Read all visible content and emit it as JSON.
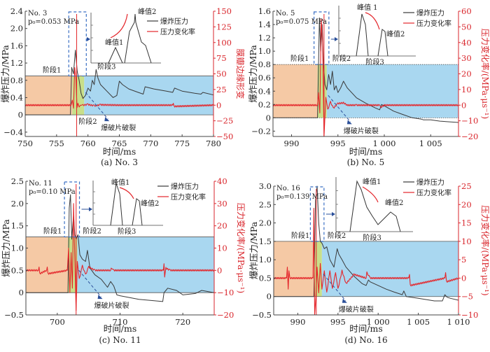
{
  "chart_data": [
    {
      "type": "line",
      "id": "a",
      "caption": "(a) No. 3",
      "sample_label": "No. 3",
      "pressure_label": "p₀=0.053 MPa",
      "xlabel": "时间/ms",
      "ylabel": "爆炸压力/MPa",
      "y2label": "膜瓣边缘形变",
      "xlim": [
        750,
        780
      ],
      "ylim": [
        -0.5,
        2.4
      ],
      "y2lim": [
        -50,
        150
      ],
      "xticks": [
        750,
        755,
        760,
        765,
        770,
        775,
        780
      ],
      "xtick_labels": [
        "750",
        "755",
        "760",
        "765",
        "770",
        "775",
        "780"
      ],
      "yticks": [
        -0.4,
        0,
        0.4,
        0.8,
        1.2,
        1.6,
        2.0,
        2.4
      ],
      "ytick_labels": [
        "−0.4",
        "0",
        "0.4",
        "0.8",
        "1.2",
        "1.6",
        "2.0",
        "2.4"
      ],
      "y2ticks": [
        -50,
        -25,
        0,
        25,
        50,
        75,
        100,
        125,
        150
      ],
      "y2tick_labels": [
        "−50",
        "−25",
        "0",
        "25",
        "50",
        "75",
        "100",
        "125",
        "150"
      ],
      "stages": [
        {
          "name": "阶段1",
          "from": 750,
          "to": 757.5,
          "color": "#f5c9a5"
        },
        {
          "name": "阶段2",
          "from": 757.5,
          "to": 759.4,
          "color": "#c8df8a"
        },
        {
          "name": "阶段3",
          "from": 759.4,
          "to": 780,
          "color": "#a9d7f0"
        }
      ],
      "stage_top": 0.9,
      "rupture_time": 758.2,
      "annotations": {
        "stage1": "阶段1",
        "stage2": "阶段2",
        "stage3": "阶段3",
        "rupture": "爆破片破裂"
      },
      "legend": [
        "爆炸压力",
        "压力变化率"
      ],
      "inset": {
        "peak1": "峰值1",
        "peak2": "峰值2",
        "trend": "up"
      },
      "series": [
        {
          "name": "爆炸压力",
          "color": "#3a3a3a",
          "axis": "left",
          "x": [
            750,
            757.2,
            757.4,
            757.7,
            758.0,
            758.3,
            758.6,
            758.9,
            759.2,
            759.6,
            760.0,
            760.4,
            760.7,
            761.0,
            761.3,
            761.6,
            762.0,
            763.0,
            764.0,
            764.6,
            765.0,
            765.5,
            766.5,
            768.0,
            768.8,
            769.1,
            770.5,
            772.5,
            773.5,
            773.8,
            775.0,
            777.0,
            778.0,
            778.3,
            780
          ],
          "y": [
            0.0,
            0.0,
            1.1,
            0.95,
            1.5,
            1.0,
            0.8,
            0.5,
            0.38,
            0.45,
            0.62,
            0.55,
            0.8,
            0.7,
            1.05,
            0.85,
            0.7,
            0.55,
            0.4,
            0.45,
            0.78,
            0.7,
            0.6,
            0.52,
            0.48,
            0.65,
            0.6,
            0.55,
            0.52,
            0.62,
            0.55,
            0.5,
            0.48,
            0.52,
            0.46
          ]
        },
        {
          "name": "压力变化率",
          "color": "#e4262b",
          "axis": "right",
          "x": [
            750,
            757.3,
            757.5,
            757.7,
            757.9,
            758.1,
            758.25,
            758.4,
            758.6,
            758.8,
            759.2,
            760.0,
            761.0,
            762.0,
            765.0,
            773.5,
            773.6,
            773.7,
            780
          ],
          "y": [
            0,
            0,
            8,
            -5,
            60,
            40,
            -4,
            3,
            -3,
            0,
            0,
            1,
            -1,
            0.5,
            0,
            0,
            3,
            -2,
            0
          ]
        }
      ]
    },
    {
      "type": "line",
      "id": "b",
      "caption": "(b) No. 5",
      "sample_label": "No. 5",
      "pressure_label": "p₀=0.075 MPa",
      "xlabel": "时间/ms",
      "ylabel": "爆炸压力/MPa",
      "y2label": "压力变化率/(MPa·μs⁻¹)",
      "xlim": [
        988,
        1008
      ],
      "ylim": [
        -0.28,
        1.6
      ],
      "y2lim": [
        -20,
        60
      ],
      "xticks": [
        990,
        995,
        1000,
        1005
      ],
      "xtick_labels": [
        "990",
        "995",
        "1 000",
        "1 005"
      ],
      "yticks": [
        -0.2,
        0,
        0.2,
        0.4,
        0.6,
        0.8,
        1.0,
        1.2,
        1.4,
        1.6
      ],
      "ytick_labels": [
        "−0.2",
        "0",
        "0.2",
        "0.4",
        "0.6",
        "0.8",
        "1.0",
        "1.2",
        "1.4",
        "1.6"
      ],
      "y2ticks": [
        -20,
        -10,
        0,
        10,
        20,
        30,
        40,
        50,
        60
      ],
      "y2tick_labels": [
        "−20",
        "−10",
        "0",
        "10",
        "20",
        "30",
        "40",
        "50",
        "60"
      ],
      "stages": [
        {
          "name": "阶段1",
          "from": 988,
          "to": 992.8,
          "color": "#f5c9a5"
        },
        {
          "name": "阶段2",
          "from": 992.8,
          "to": 993.8,
          "color": "#c8df8a"
        },
        {
          "name": "阶段3",
          "from": 993.8,
          "to": 1008,
          "color": "#a9d7f0"
        }
      ],
      "stage_top": 0.8,
      "rupture_time": 993.5,
      "annotations": {
        "stage1": "阶段1",
        "stage2": "阶段2",
        "stage3": "阶段3",
        "rupture": "爆破片破裂"
      },
      "legend": [
        "爆炸压力",
        "压力变化率"
      ],
      "inset": {
        "peak1": "峰值 1",
        "peak2": "峰值2",
        "trend": "down"
      },
      "series": [
        {
          "name": "爆炸压力",
          "color": "#3a3a3a",
          "axis": "left",
          "x": [
            988,
            992.8,
            993.0,
            993.15,
            993.3,
            993.45,
            993.6,
            993.8,
            994.0,
            994.2,
            994.4,
            994.6,
            994.8,
            995.0,
            995.3,
            995.6,
            996.0,
            997.0,
            998.0,
            999.0,
            999.5,
            999.7,
            1000.0,
            1001.0,
            1002.0,
            1003.0,
            1004.0,
            1004.2,
            1005.0,
            1006.0,
            1008
          ],
          "y": [
            0,
            0,
            1.5,
            1.0,
            1.4,
            0.8,
            0.5,
            0.42,
            0.65,
            0.5,
            0.7,
            0.42,
            0.48,
            0.38,
            0.45,
            0.55,
            0.45,
            0.3,
            0.22,
            0.15,
            0.12,
            0.2,
            0.18,
            0.1,
            0.05,
            0.0,
            -0.02,
            -0.03,
            -0.03,
            -0.05,
            -0.07
          ]
        },
        {
          "name": "压力变化率",
          "color": "#e4262b",
          "axis": "right",
          "x": [
            988,
            992.8,
            992.9,
            993.05,
            993.2,
            993.35,
            993.5,
            993.7,
            993.9,
            994.2,
            994.5,
            995.0,
            995.6,
            996.0,
            997.0,
            999.5,
            999.6,
            1000,
            1008
          ],
          "y": [
            0,
            0,
            8,
            -5,
            55,
            40,
            -20,
            5,
            -3,
            2,
            -2,
            1,
            1.5,
            0,
            0,
            0,
            -1.5,
            0,
            0
          ]
        }
      ]
    },
    {
      "type": "line",
      "id": "c",
      "caption": "(c) No. 11",
      "sample_label": "No. 11",
      "pressure_label": "p₀=0.10 MPa",
      "xlabel": "时间/ms",
      "ylabel": "爆炸压力/MPa",
      "y2label": "压力变化率/(MPa·μs⁻¹)",
      "xlim": [
        695,
        725
      ],
      "ylim": [
        -0.5,
        2.5
      ],
      "y2lim": [
        -20,
        40
      ],
      "xticks": [
        700,
        710,
        720
      ],
      "xtick_labels": [
        "700",
        "710",
        "720"
      ],
      "yticks": [
        -0.5,
        0,
        0.5,
        1.0,
        1.5,
        2.0,
        2.5
      ],
      "ytick_labels": [
        "−0.5",
        "0",
        "0.5",
        "1.0",
        "1.5",
        "2.0",
        "2.5"
      ],
      "y2ticks": [
        -20,
        -10,
        0,
        10,
        20,
        30,
        40
      ],
      "y2tick_labels": [
        "−20",
        "−10",
        "0",
        "10",
        "20",
        "30",
        "40"
      ],
      "stages": [
        {
          "name": "阶段1",
          "from": 695,
          "to": 701.7,
          "color": "#f5c9a5"
        },
        {
          "name": "阶段2",
          "from": 701.7,
          "to": 703.2,
          "color": "#c8df8a"
        },
        {
          "name": "阶段3",
          "from": 703.2,
          "to": 725,
          "color": "#a9d7f0"
        }
      ],
      "stage_top": 1.25,
      "rupture_time": 703.0,
      "annotations": {
        "stage1": "阶段1",
        "stage2": "阶段2",
        "stage3": "阶段3",
        "rupture": "爆破片破裂"
      },
      "legend": [
        "爆炸压力",
        "压力变化率"
      ],
      "inset": {
        "peak1": "峰值1",
        "peak2": "峰值2",
        "trend": "down"
      },
      "series": [
        {
          "name": "爆炸压力",
          "color": "#3a3a3a",
          "axis": "left",
          "x": [
            695,
            701.7,
            701.9,
            702.1,
            702.3,
            702.6,
            702.8,
            703.0,
            703.3,
            703.6,
            704.0,
            704.5,
            704.8,
            705.2,
            706.0,
            707.0,
            708.0,
            708.5,
            709.0,
            709.5,
            710.0,
            713.0,
            716.8,
            717.0,
            717.3,
            717.6,
            719.0,
            720.0,
            722.0,
            723.0,
            725
          ],
          "y": [
            0,
            0,
            1.9,
            2.2,
            1.2,
            1.75,
            1.3,
            1.2,
            1.3,
            0.85,
            0.75,
            0.7,
            0.95,
            0.55,
            0.4,
            0.3,
            0.12,
            0.25,
            0.15,
            -0.05,
            -0.07,
            -0.15,
            -0.2,
            0.0,
            0.05,
            0.1,
            0.05,
            -0.05,
            -0.02,
            0.05,
            0.0
          ]
        },
        {
          "name": "压力变化率",
          "color": "#e4262b",
          "axis": "right",
          "x": [
            695,
            697.0,
            697.1,
            697.2,
            698.3,
            698.4,
            698.5,
            701.6,
            701.8,
            702.0,
            702.2,
            702.4,
            702.6,
            702.8,
            703.0,
            703.2,
            703.5,
            704.0,
            704.5,
            705.0,
            706.0,
            708.5,
            708.6,
            709.0,
            716.9,
            717.0,
            717.1,
            717.3,
            718,
            725
          ],
          "y": [
            0,
            0,
            1.5,
            -1.5,
            0,
            1.5,
            -1.5,
            0,
            10,
            -10,
            8,
            -8,
            30,
            5,
            -18,
            4,
            -4,
            2,
            -2,
            1.5,
            0,
            0,
            1,
            0,
            0,
            3,
            -3,
            1,
            0,
            0
          ]
        }
      ]
    },
    {
      "type": "line",
      "id": "d",
      "caption": "(d) No. 16",
      "sample_label": "No. 16",
      "pressure_label": "p₀=0.139 MPa",
      "xlabel": "时间/ms",
      "ylabel": "爆炸压力/MPa",
      "y2label": "压力变化率/(MPa·μs⁻¹)",
      "xlim": [
        987,
        1010
      ],
      "ylim": [
        -0.5,
        3.0
      ],
      "y2lim": [
        -10,
        25
      ],
      "xticks": [
        990,
        995,
        1000,
        1005,
        1010
      ],
      "xtick_labels": [
        "990",
        "995",
        "1 000",
        "1 005",
        "1 010"
      ],
      "yticks": [
        -0.5,
        0,
        0.5,
        1.0,
        1.5,
        2.0,
        2.5,
        3.0
      ],
      "ytick_labels": [
        "−0.5",
        "0",
        "0.5",
        "1.0",
        "1.5",
        "2.0",
        "2.5",
        "3.0"
      ],
      "y2ticks": [
        -10,
        -5,
        0,
        5,
        10,
        15,
        20,
        25
      ],
      "y2tick_labels": [
        "−10",
        "−5",
        "0",
        "5",
        "10",
        "15",
        "20",
        "25"
      ],
      "stages": [
        {
          "name": "阶段1",
          "from": 987,
          "to": 992.0,
          "color": "#f5c9a5"
        },
        {
          "name": "阶段2",
          "from": 992.0,
          "to": 993.0,
          "color": "#c8df8a"
        },
        {
          "name": "阶段3",
          "from": 993.0,
          "to": 1010,
          "color": "#a9d7f0"
        }
      ],
      "stage_top": 1.5,
      "rupture_time": 992.3,
      "annotations": {
        "stage1": "阶段1",
        "stage2": "阶段2",
        "stage3": "阶段3",
        "rupture": "爆破片破裂"
      },
      "legend": [
        "爆炸压力",
        "压力变化率"
      ],
      "inset": {
        "peak1": "峰值1",
        "peak2": "峰值2",
        "trend": "down"
      },
      "series": [
        {
          "name": "爆炸压力",
          "color": "#3a3a3a",
          "axis": "left",
          "x": [
            987,
            992.0,
            992.2,
            992.4,
            992.6,
            992.8,
            993.0,
            993.3,
            993.6,
            994.0,
            994.5,
            994.9,
            995.1,
            995.5,
            996.0,
            997.0,
            998.0,
            998.5,
            998.8,
            999.0,
            1000.0,
            1001.0,
            1002.0,
            1003.0,
            1003.2,
            1003.5,
            1005.0,
            1007.0,
            1008.0,
            1008.3,
            1008.6,
            1009.0,
            1010
          ],
          "y": [
            0,
            0,
            2.6,
            3.0,
            2.0,
            1.5,
            1.45,
            1.3,
            1.35,
            1.0,
            0.8,
            1.3,
            1.15,
            1.0,
            0.8,
            0.55,
            0.35,
            0.3,
            0.45,
            0.4,
            0.3,
            0.2,
            0.12,
            0.05,
            0.15,
            0.0,
            -0.05,
            -0.12,
            -0.12,
            0.05,
            -0.02,
            -0.05,
            -0.1
          ]
        },
        {
          "name": "压力变化率",
          "color": "#e4262b",
          "axis": "right",
          "x": [
            987,
            988.6,
            988.7,
            988.8,
            988.9,
            989.0,
            991.9,
            992.0,
            992.1,
            992.25,
            992.4,
            992.6,
            992.8,
            993.0,
            993.3,
            993.6,
            994.0,
            994.3,
            994.7,
            995.0,
            995.5,
            996.0,
            997.0,
            998.5,
            998.6,
            999,
            1003.8,
            1003.9,
            1004.0,
            1008.3,
            1008.4,
            1008.5,
            1010
          ],
          "y": [
            0,
            0,
            3,
            -3,
            2,
            0,
            0,
            19,
            -10,
            -5,
            3,
            -4,
            4,
            -3,
            2,
            -4,
            2,
            -3,
            1.5,
            -3,
            2,
            -1.5,
            1,
            0,
            1.5,
            0,
            0,
            1,
            -2,
            0,
            1.5,
            -1,
            0
          ]
        }
      ]
    }
  ]
}
